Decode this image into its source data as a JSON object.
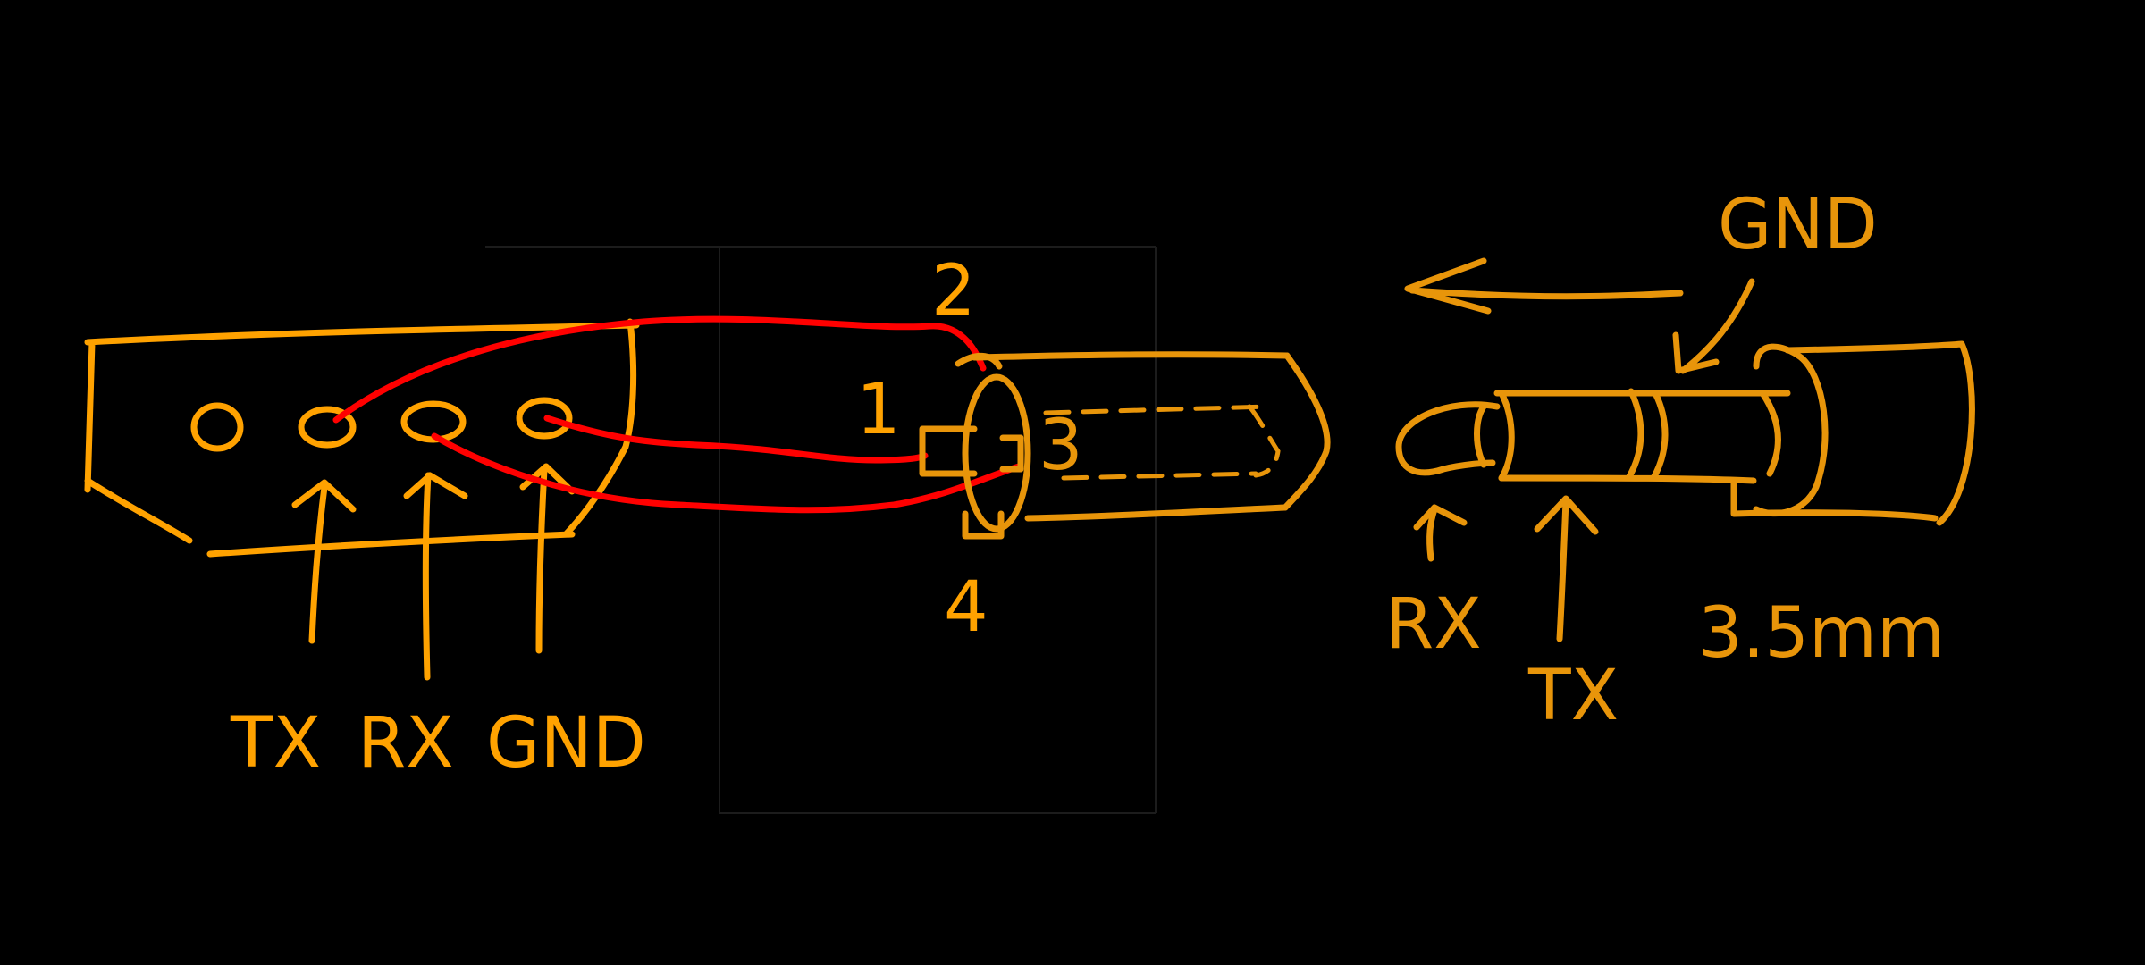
{
  "colors": {
    "background": "#000000",
    "sketch": "#FFA200",
    "sketch_secondary": "#E8950A",
    "wire": "#FF0000"
  },
  "board_labels": {
    "tx": "TX",
    "rx": "RX",
    "gnd": "GND"
  },
  "jack_pin_labels": {
    "pin1": "1",
    "pin2": "2",
    "pin3": "3",
    "pin4": "4"
  },
  "plug_labels": {
    "gnd": "GND",
    "rx": "RX",
    "tx": "TX",
    "size": "3.5mm"
  }
}
